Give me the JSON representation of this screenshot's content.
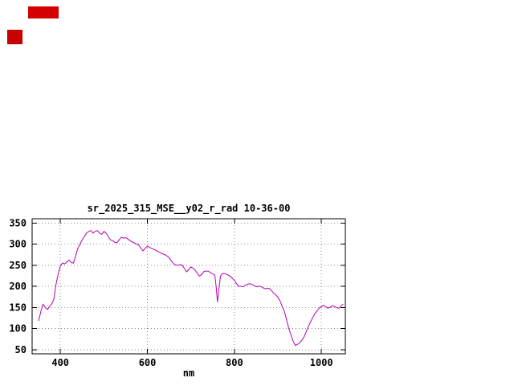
{
  "markers": {
    "top": {
      "color": "#d40000"
    },
    "left": {
      "color": "#c80000"
    }
  },
  "chart_data": {
    "type": "line",
    "title": "sr_2025_315_MSE__y02_r_rad 10-36-00",
    "xlabel": "nm",
    "ylabel": "",
    "xlim": [
      335,
      1055
    ],
    "ylim": [
      40,
      360
    ],
    "xticks": [
      400,
      600,
      800,
      1000
    ],
    "yticks": [
      50,
      100,
      150,
      200,
      250,
      300,
      350
    ],
    "grid": true,
    "legend": "none",
    "line_color": "#b400b4",
    "series": [
      {
        "color": "#b400b4",
        "points": [
          [
            350,
            118
          ],
          [
            355,
            140
          ],
          [
            360,
            158
          ],
          [
            365,
            150
          ],
          [
            370,
            145
          ],
          [
            375,
            152
          ],
          [
            380,
            158
          ],
          [
            385,
            170
          ],
          [
            390,
            205
          ],
          [
            395,
            230
          ],
          [
            400,
            248
          ],
          [
            405,
            255
          ],
          [
            410,
            253
          ],
          [
            415,
            258
          ],
          [
            420,
            262
          ],
          [
            425,
            256
          ],
          [
            430,
            255
          ],
          [
            435,
            272
          ],
          [
            440,
            290
          ],
          [
            445,
            300
          ],
          [
            450,
            310
          ],
          [
            455,
            318
          ],
          [
            460,
            326
          ],
          [
            465,
            330
          ],
          [
            470,
            332
          ],
          [
            475,
            326
          ],
          [
            480,
            330
          ],
          [
            485,
            332
          ],
          [
            490,
            326
          ],
          [
            495,
            323
          ],
          [
            500,
            330
          ],
          [
            505,
            326
          ],
          [
            510,
            318
          ],
          [
            515,
            310
          ],
          [
            520,
            308
          ],
          [
            525,
            304
          ],
          [
            530,
            303
          ],
          [
            535,
            310
          ],
          [
            540,
            316
          ],
          [
            545,
            314
          ],
          [
            550,
            315
          ],
          [
            555,
            312
          ],
          [
            560,
            308
          ],
          [
            565,
            305
          ],
          [
            570,
            303
          ],
          [
            575,
            300
          ],
          [
            580,
            298
          ],
          [
            585,
            290
          ],
          [
            590,
            284
          ],
          [
            595,
            290
          ],
          [
            600,
            295
          ],
          [
            605,
            292
          ],
          [
            610,
            290
          ],
          [
            615,
            287
          ],
          [
            620,
            285
          ],
          [
            625,
            282
          ],
          [
            630,
            279
          ],
          [
            635,
            277
          ],
          [
            640,
            275
          ],
          [
            645,
            272
          ],
          [
            650,
            268
          ],
          [
            655,
            260
          ],
          [
            660,
            254
          ],
          [
            665,
            250
          ],
          [
            670,
            250
          ],
          [
            675,
            251
          ],
          [
            680,
            250
          ],
          [
            685,
            242
          ],
          [
            690,
            234
          ],
          [
            695,
            240
          ],
          [
            700,
            246
          ],
          [
            705,
            243
          ],
          [
            710,
            238
          ],
          [
            715,
            230
          ],
          [
            720,
            224
          ],
          [
            725,
            228
          ],
          [
            730,
            235
          ],
          [
            735,
            236
          ],
          [
            740,
            236
          ],
          [
            745,
            232
          ],
          [
            750,
            230
          ],
          [
            755,
            226
          ],
          [
            758,
            200
          ],
          [
            761,
            163
          ],
          [
            764,
            190
          ],
          [
            768,
            224
          ],
          [
            772,
            230
          ],
          [
            776,
            230
          ],
          [
            780,
            229
          ],
          [
            785,
            227
          ],
          [
            790,
            224
          ],
          [
            795,
            219
          ],
          [
            800,
            214
          ],
          [
            805,
            206
          ],
          [
            810,
            200
          ],
          [
            815,
            200
          ],
          [
            820,
            199
          ],
          [
            825,
            202
          ],
          [
            830,
            205
          ],
          [
            835,
            206
          ],
          [
            840,
            205
          ],
          [
            845,
            202
          ],
          [
            850,
            199
          ],
          [
            855,
            200
          ],
          [
            860,
            200
          ],
          [
            865,
            197
          ],
          [
            870,
            194
          ],
          [
            875,
            195
          ],
          [
            880,
            195
          ],
          [
            885,
            190
          ],
          [
            890,
            184
          ],
          [
            895,
            180
          ],
          [
            900,
            174
          ],
          [
            905,
            165
          ],
          [
            910,
            152
          ],
          [
            915,
            140
          ],
          [
            920,
            120
          ],
          [
            925,
            100
          ],
          [
            930,
            85
          ],
          [
            935,
            70
          ],
          [
            940,
            60
          ],
          [
            945,
            62
          ],
          [
            950,
            66
          ],
          [
            955,
            72
          ],
          [
            960,
            80
          ],
          [
            965,
            92
          ],
          [
            970,
            105
          ],
          [
            975,
            116
          ],
          [
            980,
            126
          ],
          [
            985,
            135
          ],
          [
            990,
            142
          ],
          [
            995,
            148
          ],
          [
            1000,
            152
          ],
          [
            1005,
            155
          ],
          [
            1010,
            152
          ],
          [
            1015,
            148
          ],
          [
            1020,
            150
          ],
          [
            1025,
            154
          ],
          [
            1030,
            152
          ],
          [
            1035,
            150
          ],
          [
            1040,
            148
          ],
          [
            1045,
            153
          ],
          [
            1050,
            158
          ]
        ]
      }
    ]
  }
}
